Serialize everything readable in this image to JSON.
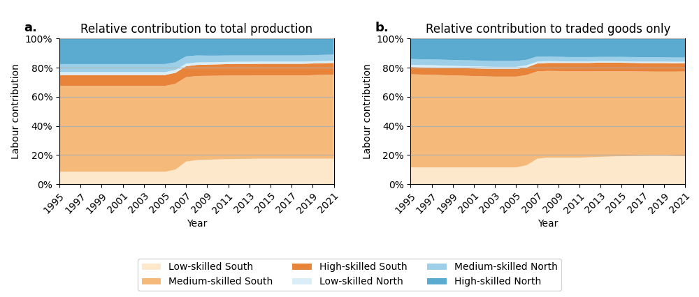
{
  "chart_data": [
    {
      "type": "area",
      "stacked": true,
      "title": "Relative contribution to total production",
      "annotations": [
        "a."
      ],
      "xlabel": "Year",
      "ylabel": "Labour contribution",
      "x": [
        1995,
        1996,
        1997,
        1998,
        1999,
        2000,
        2001,
        2002,
        2003,
        2004,
        2005,
        2006,
        2007,
        2008,
        2009,
        2010,
        2011,
        2012,
        2013,
        2014,
        2015,
        2016,
        2017,
        2018,
        2019,
        2020,
        2021
      ],
      "xlim": [
        1995,
        2021
      ],
      "xticks": [
        1995,
        1997,
        1999,
        2001,
        2003,
        2005,
        2007,
        2009,
        2011,
        2013,
        2015,
        2017,
        2019,
        2021
      ],
      "ylim": [
        0,
        1.0
      ],
      "yticks": [
        {
          "value": 0,
          "label": "0%"
        },
        {
          "value": 0.2,
          "label": "20%"
        },
        {
          "value": 0.4,
          "label": "40%"
        },
        {
          "value": 0.6,
          "label": "60%"
        },
        {
          "value": 0.8,
          "label": "80%"
        },
        {
          "value": 1.0,
          "label": "100%"
        }
      ],
      "grid": "y",
      "legend": "lower center",
      "series": [
        {
          "name": "Low-skilled South",
          "color": "#fde8cc",
          "values": [
            0.085,
            0.085,
            0.085,
            0.085,
            0.085,
            0.085,
            0.085,
            0.085,
            0.085,
            0.085,
            0.085,
            0.1,
            0.155,
            0.165,
            0.168,
            0.17,
            0.172,
            0.173,
            0.174,
            0.175,
            0.175,
            0.175,
            0.175,
            0.175,
            0.175,
            0.175,
            0.175
          ]
        },
        {
          "name": "Medium-skilled South",
          "color": "#f5b97a",
          "values": [
            0.59,
            0.59,
            0.59,
            0.59,
            0.59,
            0.59,
            0.59,
            0.59,
            0.59,
            0.59,
            0.59,
            0.59,
            0.58,
            0.578,
            0.576,
            0.575,
            0.574,
            0.573,
            0.572,
            0.572,
            0.572,
            0.572,
            0.572,
            0.572,
            0.574,
            0.576,
            0.578
          ]
        },
        {
          "name": "High-skilled South",
          "color": "#e8833a",
          "values": [
            0.075,
            0.075,
            0.075,
            0.075,
            0.075,
            0.075,
            0.075,
            0.075,
            0.075,
            0.075,
            0.075,
            0.075,
            0.075,
            0.076,
            0.077,
            0.078,
            0.079,
            0.08,
            0.08,
            0.08,
            0.08,
            0.08,
            0.08,
            0.08,
            0.08,
            0.08,
            0.08
          ]
        },
        {
          "name": "Low-skilled North",
          "color": "#daeef8",
          "values": [
            0.02,
            0.02,
            0.02,
            0.02,
            0.02,
            0.02,
            0.02,
            0.02,
            0.02,
            0.02,
            0.02,
            0.02,
            0.018,
            0.017,
            0.016,
            0.015,
            0.015,
            0.015,
            0.015,
            0.015,
            0.015,
            0.015,
            0.015,
            0.015,
            0.015,
            0.015,
            0.015
          ]
        },
        {
          "name": "Medium-skilled North",
          "color": "#9ecfe8",
          "values": [
            0.055,
            0.055,
            0.055,
            0.055,
            0.055,
            0.055,
            0.055,
            0.055,
            0.055,
            0.055,
            0.055,
            0.052,
            0.05,
            0.048,
            0.046,
            0.045,
            0.044,
            0.043,
            0.043,
            0.042,
            0.042,
            0.042,
            0.042,
            0.042,
            0.042,
            0.042,
            0.042
          ]
        },
        {
          "name": "High-skilled North",
          "color": "#5aabcf",
          "values": [
            0.175,
            0.175,
            0.175,
            0.175,
            0.175,
            0.175,
            0.175,
            0.175,
            0.175,
            0.175,
            0.175,
            0.163,
            0.122,
            0.116,
            0.117,
            0.117,
            0.116,
            0.116,
            0.116,
            0.116,
            0.116,
            0.116,
            0.116,
            0.116,
            0.114,
            0.112,
            0.11
          ]
        }
      ]
    },
    {
      "type": "area",
      "stacked": true,
      "title": "Relative contribution to traded goods only",
      "annotations": [
        "b."
      ],
      "xlabel": "Year",
      "ylabel": "Labour contribution",
      "x": [
        1995,
        1996,
        1997,
        1998,
        1999,
        2000,
        2001,
        2002,
        2003,
        2004,
        2005,
        2006,
        2007,
        2008,
        2009,
        2010,
        2011,
        2012,
        2013,
        2014,
        2015,
        2016,
        2017,
        2018,
        2019,
        2020,
        2021
      ],
      "xlim": [
        1995,
        2021
      ],
      "xticks": [
        1995,
        1997,
        1999,
        2001,
        2003,
        2005,
        2007,
        2009,
        2011,
        2013,
        2015,
        2017,
        2019,
        2021
      ],
      "ylim": [
        0,
        1.0
      ],
      "yticks": [
        {
          "value": 0,
          "label": "0%"
        },
        {
          "value": 0.2,
          "label": "20%"
        },
        {
          "value": 0.4,
          "label": "40%"
        },
        {
          "value": 0.6,
          "label": "60%"
        },
        {
          "value": 0.8,
          "label": "80%"
        },
        {
          "value": 1.0,
          "label": "100%"
        }
      ],
      "grid": "y",
      "legend": "lower center",
      "series": [
        {
          "name": "Low-skilled South",
          "color": "#fde8cc",
          "values": [
            0.115,
            0.115,
            0.115,
            0.115,
            0.115,
            0.115,
            0.115,
            0.115,
            0.115,
            0.115,
            0.115,
            0.13,
            0.175,
            0.182,
            0.182,
            0.182,
            0.182,
            0.185,
            0.188,
            0.19,
            0.192,
            0.193,
            0.194,
            0.195,
            0.195,
            0.193,
            0.192
          ]
        },
        {
          "name": "Medium-skilled South",
          "color": "#f5b97a",
          "values": [
            0.64,
            0.638,
            0.636,
            0.634,
            0.632,
            0.63,
            0.628,
            0.626,
            0.624,
            0.624,
            0.624,
            0.62,
            0.6,
            0.596,
            0.595,
            0.594,
            0.593,
            0.59,
            0.588,
            0.586,
            0.584,
            0.582,
            0.58,
            0.578,
            0.578,
            0.58,
            0.582
          ]
        },
        {
          "name": "High-skilled South",
          "color": "#e8833a",
          "values": [
            0.05,
            0.05,
            0.051,
            0.051,
            0.051,
            0.051,
            0.052,
            0.052,
            0.052,
            0.052,
            0.052,
            0.052,
            0.054,
            0.055,
            0.056,
            0.057,
            0.058,
            0.058,
            0.059,
            0.059,
            0.058,
            0.058,
            0.058,
            0.059,
            0.059,
            0.058,
            0.058
          ]
        },
        {
          "name": "Low-skilled North",
          "color": "#daeef8",
          "values": [
            0.015,
            0.015,
            0.015,
            0.015,
            0.015,
            0.015,
            0.015,
            0.015,
            0.015,
            0.015,
            0.015,
            0.015,
            0.013,
            0.012,
            0.011,
            0.01,
            0.01,
            0.01,
            0.01,
            0.01,
            0.01,
            0.01,
            0.01,
            0.01,
            0.01,
            0.01,
            0.01
          ]
        },
        {
          "name": "Medium-skilled North",
          "color": "#9ecfe8",
          "values": [
            0.04,
            0.04,
            0.04,
            0.04,
            0.04,
            0.04,
            0.04,
            0.04,
            0.04,
            0.04,
            0.04,
            0.038,
            0.035,
            0.032,
            0.031,
            0.03,
            0.03,
            0.03,
            0.029,
            0.029,
            0.03,
            0.03,
            0.03,
            0.03,
            0.029,
            0.029,
            0.028
          ]
        },
        {
          "name": "High-skilled North",
          "color": "#5aabcf",
          "values": [
            0.14,
            0.142,
            0.143,
            0.145,
            0.147,
            0.149,
            0.15,
            0.152,
            0.154,
            0.154,
            0.154,
            0.145,
            0.123,
            0.123,
            0.124,
            0.127,
            0.127,
            0.127,
            0.126,
            0.126,
            0.126,
            0.127,
            0.128,
            0.128,
            0.129,
            0.13,
            0.13
          ]
        }
      ]
    }
  ]
}
